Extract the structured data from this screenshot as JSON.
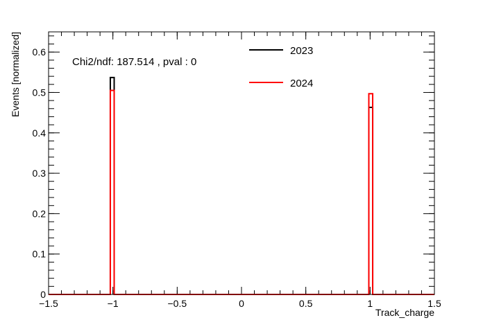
{
  "chart_data": {
    "type": "histogram",
    "xlabel": "Track_charge",
    "ylabel": "Events [normalized]",
    "xlim": [
      -1.5,
      1.5
    ],
    "ylim": [
      0,
      0.65
    ],
    "x_ticks": [
      -1.5,
      -1,
      -0.5,
      0,
      0.5,
      1,
      1.5
    ],
    "x_tick_labels": [
      "−1.5",
      "−1",
      "−0.5",
      "0",
      "0.5",
      "1",
      "1.5"
    ],
    "y_ticks": [
      0,
      0.1,
      0.2,
      0.3,
      0.4,
      0.5,
      0.6
    ],
    "y_tick_labels": [
      "0",
      "0.1",
      "0.2",
      "0.3",
      "0.4",
      "0.5",
      "0.6"
    ],
    "annotation": "Chi2/ndf: 187.514 , pval : 0",
    "legend_position": "top-center",
    "bins": 100,
    "series": [
      {
        "name": "2023",
        "color": "#000000",
        "nonzero_bins": [
          {
            "x_low": -1.02,
            "x_high": -0.99,
            "value": 0.537
          },
          {
            "x_low": 0.99,
            "x_high": 1.02,
            "value": 0.463
          }
        ]
      },
      {
        "name": "2024",
        "color": "#ff0000",
        "nonzero_bins": [
          {
            "x_low": -1.02,
            "x_high": -0.99,
            "value": 0.505
          },
          {
            "x_low": 0.99,
            "x_high": 1.02,
            "value": 0.497
          }
        ]
      }
    ]
  }
}
